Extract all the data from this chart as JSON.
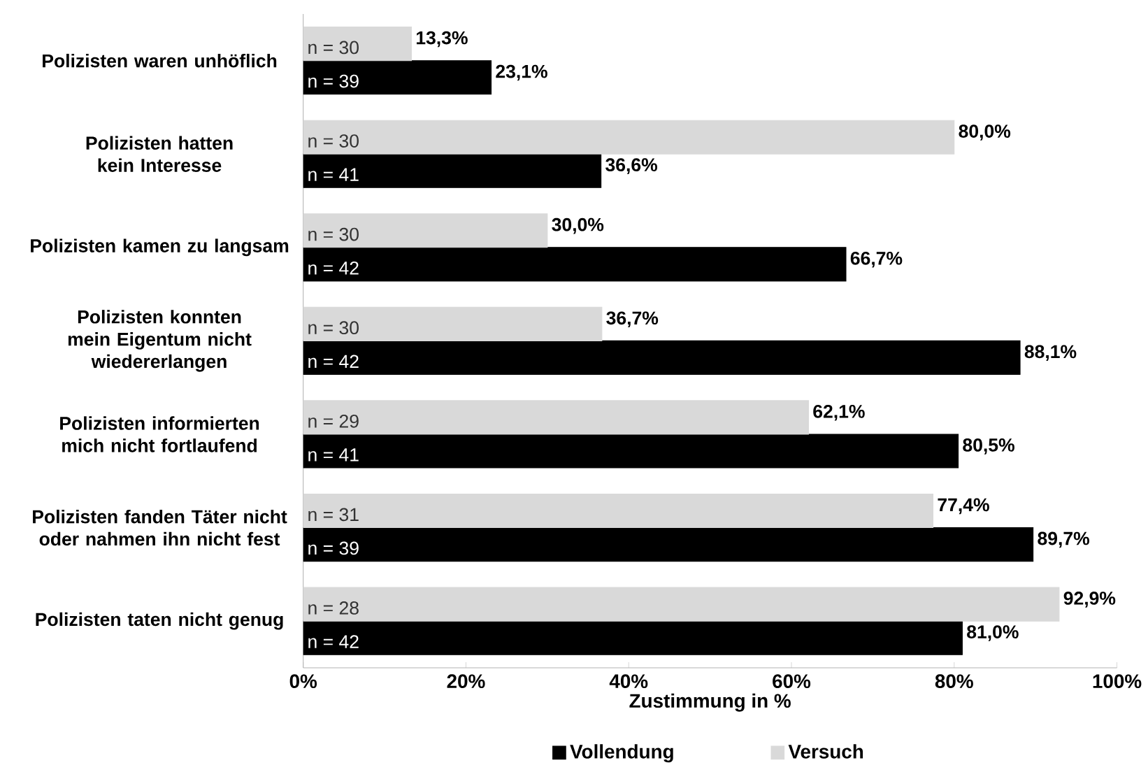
{
  "chart_data": {
    "type": "bar",
    "orientation": "horizontal",
    "xlabel": "Zustimmung in %",
    "legend": "bottom",
    "categories": [
      "Polizisten waren unhöflich",
      "Polizisten hatten kein Interesse",
      "Polizisten kamen zu langsam",
      "Polizisten konnten mein Eigentum nicht wiedererlangen",
      "Polizisten informierten mich nicht fortlaufend",
      "Polizisten fanden Täter nicht oder nahmen ihn nicht fest",
      "Polizisten taten nicht genug"
    ],
    "series": [
      {
        "name": "Vollendung",
        "color": "#000000",
        "values": [
          23.1,
          36.6,
          66.7,
          88.1,
          80.5,
          89.7,
          81.0
        ],
        "value_labels": [
          "23,1%",
          "36,6%",
          "66,7%",
          "88,1%",
          "80,5%",
          "89,7%",
          "81,0%"
        ]
      },
      {
        "name": "Versuch",
        "color": "#d9d9d9",
        "values": [
          13.3,
          80.0,
          30.0,
          36.7,
          62.1,
          77.4,
          92.9
        ],
        "value_labels": [
          "13,3%",
          "80,0%",
          "30,0%",
          "36,7%",
          "62,1%",
          "77,4%",
          "92,9%"
        ]
      }
    ],
    "xlim": [
      0,
      100
    ],
    "xticks": [
      {
        "value": 0,
        "label": "0%"
      },
      {
        "value": 20,
        "label": "20%"
      },
      {
        "value": 40,
        "label": "40%"
      },
      {
        "value": 60,
        "label": "60%"
      },
      {
        "value": 80,
        "label": "80%"
      },
      {
        "value": 100,
        "label": "100%"
      }
    ],
    "annotations": [
      "n = 39",
      "n = 30",
      "n = 41",
      "n = 30",
      "n = 42",
      "n = 30",
      "n = 42",
      "n = 30",
      "n = 41",
      "n = 29",
      "n = 39",
      "n = 31",
      "n = 42",
      "n = 28"
    ]
  }
}
